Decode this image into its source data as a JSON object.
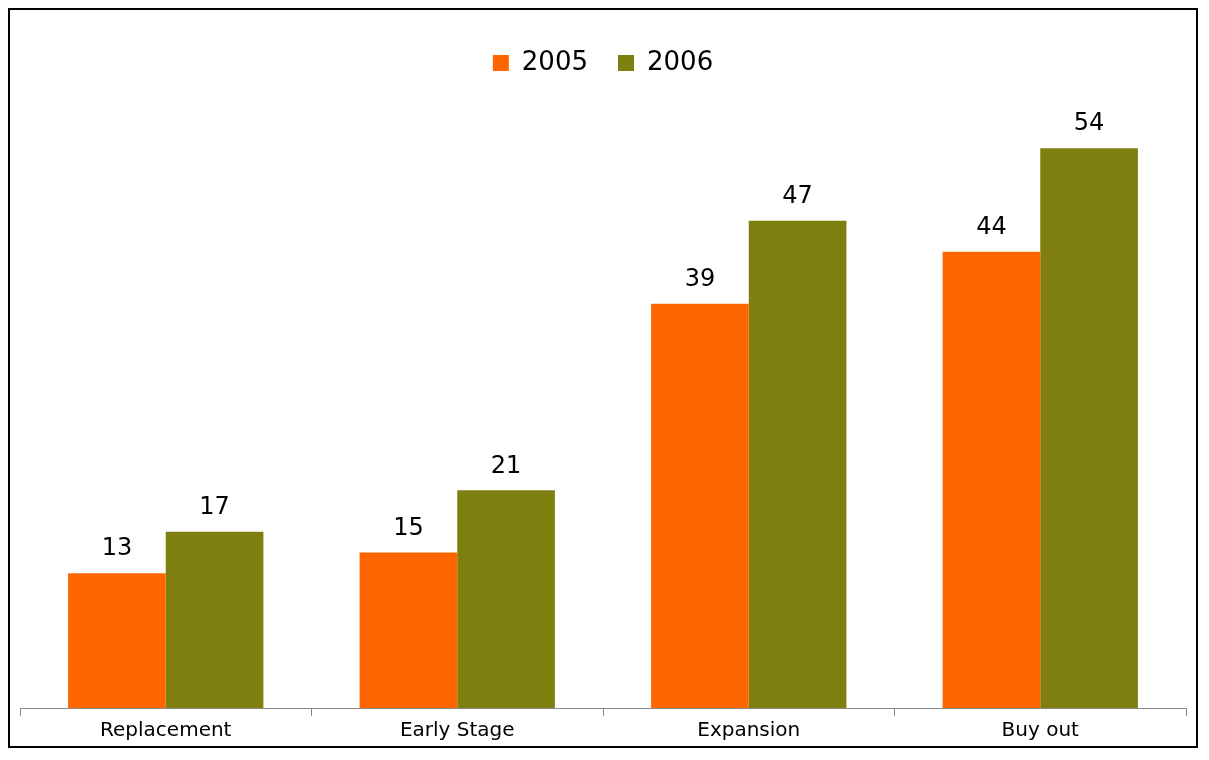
{
  "chart_data": {
    "type": "bar",
    "categories": [
      "Replacement",
      "Early Stage",
      "Expansion",
      "Buy out"
    ],
    "series": [
      {
        "name": "2005",
        "color": "#ff6600",
        "values": [
          13,
          15,
          39,
          44
        ]
      },
      {
        "name": "2006",
        "color": "#7f7f10",
        "values": [
          17,
          21,
          47,
          54
        ]
      }
    ],
    "data_labels": true,
    "legend": "top",
    "grid": false
  }
}
